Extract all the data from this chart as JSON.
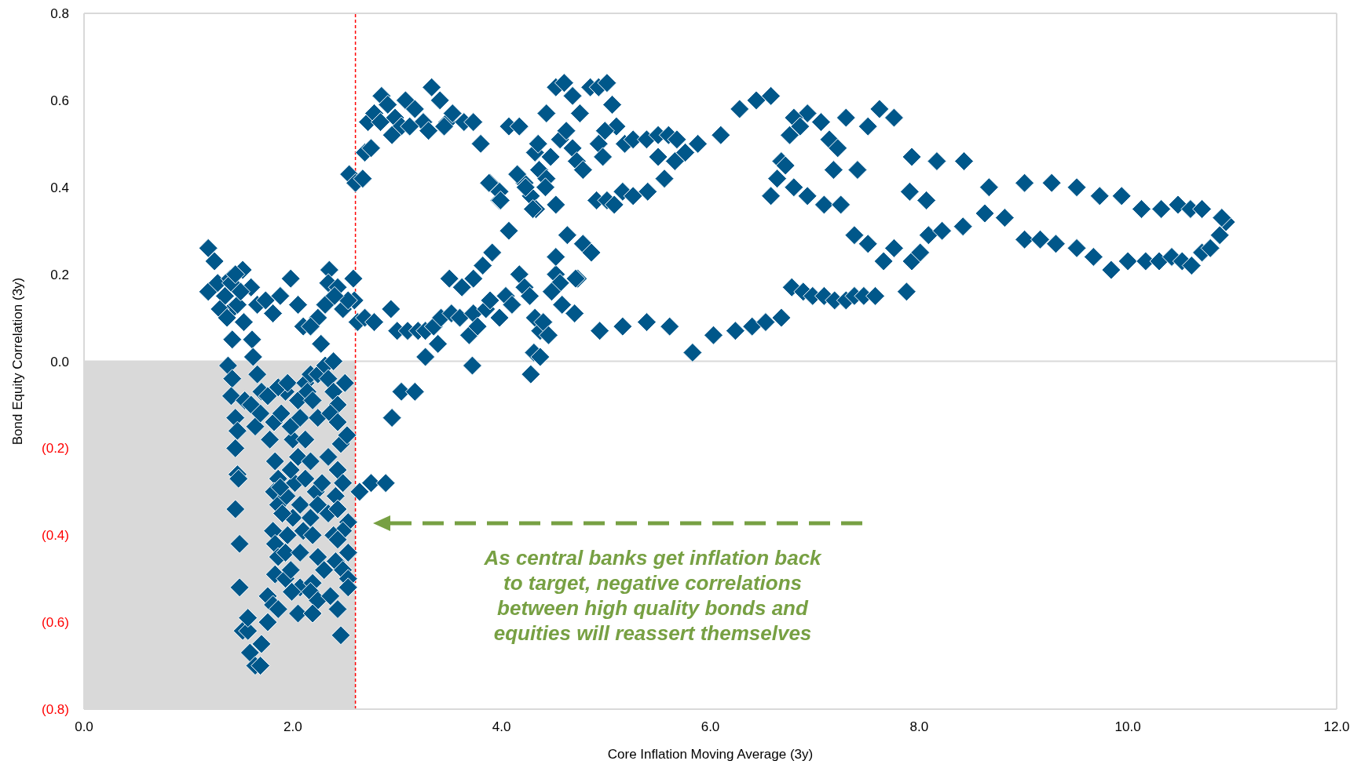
{
  "chart_data": {
    "type": "scatter",
    "xlabel": "Core Inflation Moving Average (3y)",
    "ylabel": "Bond Equity Correlation (3y)",
    "xlim": [
      0,
      12
    ],
    "xticks": [
      {
        "value": 0,
        "label": "0.0"
      },
      {
        "value": 2,
        "label": "2.0"
      },
      {
        "value": 4,
        "label": "4.0"
      },
      {
        "value": 6,
        "label": "6.0"
      },
      {
        "value": 8,
        "label": "8.0"
      },
      {
        "value": 10,
        "label": "10.0"
      },
      {
        "value": 12,
        "label": "12.0"
      }
    ],
    "ylim": [
      -0.8,
      0.8
    ],
    "yticks": [
      {
        "value": 0.8,
        "label": "0.8"
      },
      {
        "value": 0.6,
        "label": "0.6"
      },
      {
        "value": 0.4,
        "label": "0.4"
      },
      {
        "value": 0.2,
        "label": "0.2"
      },
      {
        "value": 0,
        "label": "0.0"
      },
      {
        "value": -0.2,
        "label": "(0.2)"
      },
      {
        "value": -0.4,
        "label": "(0.4)"
      },
      {
        "value": -0.6,
        "label": "(0.6)"
      },
      {
        "value": -0.8,
        "label": "(0.8)"
      }
    ],
    "marker": "diamond",
    "ref_lines": [
      {
        "axis": "x",
        "value": 2.6,
        "color": "#ff0000",
        "line_style": "dashed"
      },
      {
        "axis": "y",
        "value": 0,
        "color": "#d9d9d9",
        "line_style": "solid"
      }
    ],
    "bands": [
      {
        "axis": "x",
        "from": 0,
        "to": 2.6,
        "color": "#d9d9d9"
      }
    ],
    "annotations": [
      "As central banks get inflation back to target, negative correlations between high quality bonds and equities will reassert themselves"
    ],
    "series": [
      {
        "color": "#00578a",
        "x": [
          1.19,
          1.25,
          1.19,
          1.28,
          1.35,
          1.4,
          1.52,
          1.41,
          1.42,
          1.47,
          1.53,
          1.42,
          1.6,
          1.61,
          1.62,
          1.66,
          1.81,
          1.74,
          1.88,
          1.98,
          2.05,
          2.1,
          2.24,
          2.27,
          2.35,
          2.34,
          2.43,
          2.48,
          2.58,
          2.59,
          2.62,
          2.53,
          2.31,
          2.17,
          1.3,
          1.37,
          1.5,
          1.45,
          2.4,
          1.38,
          1.42,
          1.41,
          1.45,
          1.47,
          1.45,
          1.47,
          1.48,
          1.45,
          1.49,
          1.49,
          1.52,
          1.57,
          1.59,
          1.64,
          1.69,
          1.7,
          1.76,
          1.57,
          1.54,
          1.6,
          1.66,
          1.7,
          1.64,
          1.69,
          1.76,
          1.82,
          1.78,
          1.83,
          1.86,
          1.82,
          1.86,
          1.81,
          1.83,
          1.86,
          1.83,
          1.76,
          1.81,
          1.93,
          1.98,
          1.93,
          1.95,
          2.0,
          1.94,
          2.02,
          1.98,
          2.05,
          2.0,
          1.98,
          1.89,
          1.93,
          1.86,
          1.95,
          2.05,
          2.07,
          2.07,
          2.1,
          2.07,
          2.07,
          2.05,
          1.86,
          2.12,
          2.17,
          2.24,
          2.14,
          2.19,
          2.24,
          2.12,
          2.17,
          2.22,
          2.24,
          2.17,
          2.19,
          2.24,
          2.19,
          2.17,
          2.24,
          2.19,
          2.31,
          2.39,
          2.34,
          2.39,
          2.43,
          2.36,
          2.43,
          2.46,
          2.34,
          2.43,
          2.48,
          2.41,
          2.34,
          2.43,
          2.53,
          2.48,
          2.39,
          2.43,
          2.41,
          2.48,
          2.53,
          2.53,
          2.36,
          2.43,
          2.46,
          2.53,
          2.64,
          2.75,
          2.89,
          2.95,
          1.9,
          1.88,
          2.12,
          2.28,
          2.3,
          1.99,
          2.5,
          2.52,
          2.54,
          2.6,
          2.67,
          2.69,
          2.75,
          2.72,
          2.78,
          2.85,
          2.84,
          2.91,
          2.98,
          3.04,
          3.08,
          3.17,
          3.25,
          3.33,
          3.41,
          3.48,
          3.53,
          3.45,
          3.64,
          3.73,
          3.8,
          3.89,
          3.98,
          3.98,
          4.07,
          4.17,
          4.22,
          4.28,
          4.33,
          4.32,
          4.35,
          4.43,
          4.52,
          4.6,
          4.68,
          4.75,
          4.85,
          4.93,
          5.01,
          5.06,
          5.1,
          5.18,
          5.26,
          5.39,
          5.5,
          5.6,
          5.68,
          5.76,
          5.88,
          6.1,
          6.28,
          6.44,
          6.58,
          4.15,
          4.23,
          4.36,
          4.43,
          4.47,
          4.56,
          4.62,
          4.68,
          4.72,
          4.78,
          4.93,
          4.97,
          4.99,
          4.42,
          4.52,
          4.91,
          5.01,
          5.08,
          5.16,
          5.26,
          5.4,
          3.88,
          3.99,
          4.3,
          2.95,
          3.12,
          3.3,
          5.5,
          5.56,
          5.66,
          2.69,
          2.78,
          2.94,
          3.0,
          3.1,
          3.2,
          3.27,
          3.35,
          3.42,
          3.39,
          3.52,
          3.6,
          3.69,
          3.73,
          3.77,
          3.85,
          3.89,
          3.98,
          4.04,
          4.1,
          4.17,
          4.22,
          4.27,
          4.32,
          4.37,
          4.31,
          4.28,
          4.4,
          4.45,
          4.52,
          4.56,
          4.58,
          4.48,
          4.7,
          4.73,
          3.04,
          3.17,
          3.27,
          3.5,
          3.62,
          3.73,
          3.82,
          3.91,
          4.07,
          3.72,
          4.37,
          4.52,
          4.63,
          4.78,
          4.86,
          4.71,
          4.94,
          5.16,
          5.39,
          5.61,
          5.83,
          6.03,
          6.24,
          6.4,
          6.53,
          6.68,
          6.78,
          6.89,
          6.98,
          7.09,
          7.19,
          7.3,
          7.38,
          7.47,
          7.58,
          7.88,
          7.66,
          7.76,
          7.93,
          8.01,
          8.09,
          8.22,
          8.42,
          8.63,
          8.82,
          9.01,
          9.16,
          9.31,
          9.51,
          9.67,
          9.84,
          10.0,
          10.17,
          10.3,
          10.42,
          10.52,
          10.61,
          10.71,
          10.79,
          10.88,
          10.94,
          10.9,
          9.01,
          9.27,
          9.51,
          9.73,
          9.94,
          10.13,
          10.32,
          10.48,
          10.6,
          10.71,
          7.93,
          8.17,
          8.43,
          8.67,
          7.91,
          8.07,
          7.62,
          7.76,
          7.51,
          7.3,
          7.18,
          7.41,
          7.14,
          7.22,
          7.06,
          6.93,
          6.8,
          6.76,
          6.86,
          6.64,
          6.68,
          6.72,
          6.58,
          6.8,
          6.93,
          7.09,
          7.25,
          7.38,
          7.51
        ],
        "values": [
          0.26,
          0.23,
          0.16,
          0.18,
          0.15,
          0.19,
          0.21,
          0.18,
          0.12,
          0.13,
          0.09,
          0.05,
          0.17,
          0.05,
          0.01,
          0.13,
          0.11,
          0.14,
          0.15,
          0.19,
          0.13,
          0.08,
          0.1,
          0.04,
          0.21,
          0.18,
          0.17,
          0.12,
          0.19,
          0.14,
          0.09,
          0.14,
          0.13,
          0.08,
          0.12,
          0.1,
          0.16,
          0.2,
          0.15,
          -0.01,
          -0.04,
          -0.08,
          -0.13,
          -0.16,
          -0.2,
          -0.26,
          -0.27,
          -0.34,
          -0.42,
          -0.52,
          -0.62,
          -0.62,
          -0.67,
          -0.7,
          -0.7,
          -0.65,
          -0.6,
          -0.59,
          -0.09,
          -0.1,
          -0.03,
          -0.07,
          -0.15,
          -0.12,
          -0.08,
          -0.14,
          -0.18,
          -0.23,
          -0.27,
          -0.3,
          -0.33,
          -0.39,
          -0.42,
          -0.45,
          -0.49,
          -0.54,
          -0.56,
          -0.5,
          -0.48,
          -0.44,
          -0.4,
          -0.36,
          -0.31,
          -0.28,
          -0.25,
          -0.22,
          -0.18,
          -0.15,
          -0.12,
          -0.07,
          -0.06,
          -0.05,
          -0.09,
          -0.13,
          -0.33,
          -0.39,
          -0.44,
          -0.52,
          -0.58,
          -0.57,
          -0.05,
          -0.03,
          -0.03,
          -0.07,
          -0.09,
          -0.13,
          -0.18,
          -0.23,
          -0.3,
          -0.33,
          -0.36,
          -0.4,
          -0.45,
          -0.51,
          -0.53,
          -0.55,
          -0.58,
          -0.01,
          0.0,
          -0.04,
          -0.07,
          -0.1,
          -0.12,
          -0.14,
          -0.19,
          -0.22,
          -0.25,
          -0.28,
          -0.31,
          -0.35,
          -0.34,
          -0.37,
          -0.39,
          -0.4,
          -0.41,
          -0.46,
          -0.48,
          -0.44,
          -0.5,
          -0.54,
          -0.57,
          -0.63,
          -0.52,
          -0.3,
          -0.28,
          -0.28,
          -0.13,
          -0.35,
          -0.29,
          -0.27,
          -0.28,
          -0.48,
          -0.53,
          -0.05,
          -0.17,
          0.43,
          0.41,
          0.42,
          0.48,
          0.49,
          0.55,
          0.57,
          0.61,
          0.55,
          0.59,
          0.56,
          0.54,
          0.6,
          0.58,
          0.55,
          0.63,
          0.6,
          0.55,
          0.57,
          0.54,
          0.55,
          0.55,
          0.5,
          0.41,
          0.37,
          0.39,
          0.54,
          0.54,
          0.41,
          0.38,
          0.35,
          0.48,
          0.5,
          0.57,
          0.63,
          0.64,
          0.61,
          0.57,
          0.63,
          0.63,
          0.64,
          0.59,
          0.54,
          0.5,
          0.51,
          0.51,
          0.52,
          0.52,
          0.51,
          0.48,
          0.5,
          0.52,
          0.58,
          0.6,
          0.61,
          0.43,
          0.4,
          0.44,
          0.42,
          0.47,
          0.51,
          0.53,
          0.49,
          0.46,
          0.44,
          0.5,
          0.47,
          0.53,
          0.4,
          0.36,
          0.37,
          0.37,
          0.36,
          0.39,
          0.38,
          0.39,
          0.41,
          0.37,
          0.35,
          0.52,
          0.54,
          0.53,
          0.47,
          0.42,
          0.46,
          0.1,
          0.09,
          0.12,
          0.07,
          0.07,
          0.07,
          0.07,
          0.08,
          0.1,
          0.04,
          0.11,
          0.1,
          0.06,
          0.11,
          0.08,
          0.12,
          0.14,
          0.1,
          0.15,
          0.13,
          0.2,
          0.17,
          0.15,
          0.1,
          0.07,
          0.02,
          -0.03,
          0.09,
          0.06,
          0.2,
          0.18,
          0.13,
          0.16,
          0.11,
          0.19,
          -0.07,
          -0.07,
          0.01,
          0.19,
          0.17,
          0.19,
          0.22,
          0.25,
          0.3,
          -0.01,
          0.01,
          0.24,
          0.29,
          0.27,
          0.25,
          0.19,
          0.07,
          0.08,
          0.09,
          0.08,
          0.02,
          0.06,
          0.07,
          0.08,
          0.09,
          0.1,
          0.17,
          0.16,
          0.15,
          0.15,
          0.14,
          0.14,
          0.15,
          0.15,
          0.15,
          0.16,
          0.23,
          0.26,
          0.23,
          0.25,
          0.29,
          0.3,
          0.31,
          0.34,
          0.33,
          0.28,
          0.28,
          0.27,
          0.26,
          0.24,
          0.21,
          0.23,
          0.23,
          0.23,
          0.24,
          0.23,
          0.22,
          0.25,
          0.26,
          0.29,
          0.32,
          0.33,
          0.41,
          0.41,
          0.4,
          0.38,
          0.38,
          0.35,
          0.35,
          0.36,
          0.35,
          0.35,
          0.47,
          0.46,
          0.46,
          0.4,
          0.39,
          0.37,
          0.58,
          0.56,
          0.54,
          0.56,
          0.44,
          0.44,
          0.51,
          0.49,
          0.55,
          0.57,
          0.56,
          0.52,
          0.54,
          0.42,
          0.46,
          0.45,
          0.38,
          0.4,
          0.38,
          0.36,
          0.36,
          0.29,
          0.27
        ]
      }
    ]
  }
}
